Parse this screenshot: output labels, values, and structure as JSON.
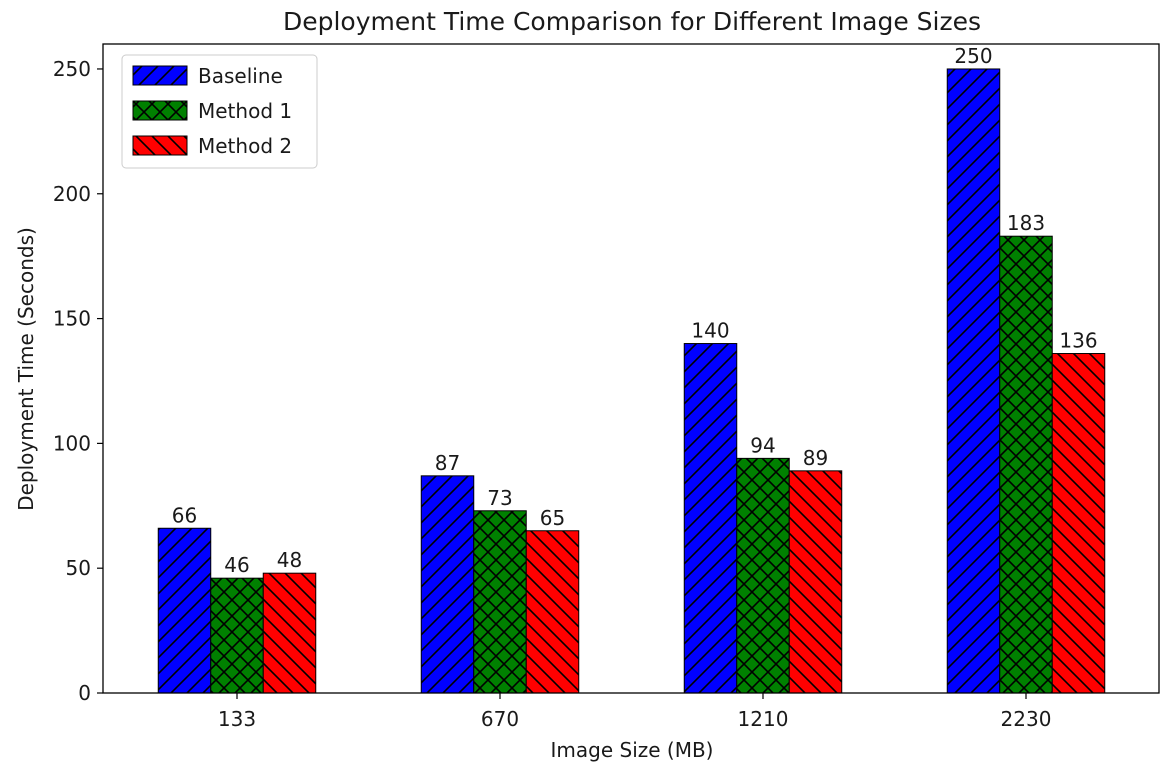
{
  "chart_data": {
    "type": "bar",
    "title": "Deployment Time Comparison for Different Image Sizes",
    "xlabel": "Image Size (MB)",
    "ylabel": "Deployment Time (Seconds)",
    "categories": [
      "133",
      "670",
      "1210",
      "2230"
    ],
    "series": [
      {
        "name": "Baseline",
        "values": [
          66,
          87,
          140,
          250
        ],
        "color": "#0000ff",
        "hatch": "diagonal-forward"
      },
      {
        "name": "Method 1",
        "values": [
          46,
          73,
          94,
          183
        ],
        "color": "#008000",
        "hatch": "crosshatch"
      },
      {
        "name": "Method 2",
        "values": [
          48,
          65,
          89,
          136
        ],
        "color": "#ff0000",
        "hatch": "diagonal-back"
      }
    ],
    "ylim": [
      0,
      260
    ],
    "yticks": [
      0,
      50,
      100,
      150,
      200,
      250
    ],
    "grid": false,
    "legend_position": "top-left"
  }
}
